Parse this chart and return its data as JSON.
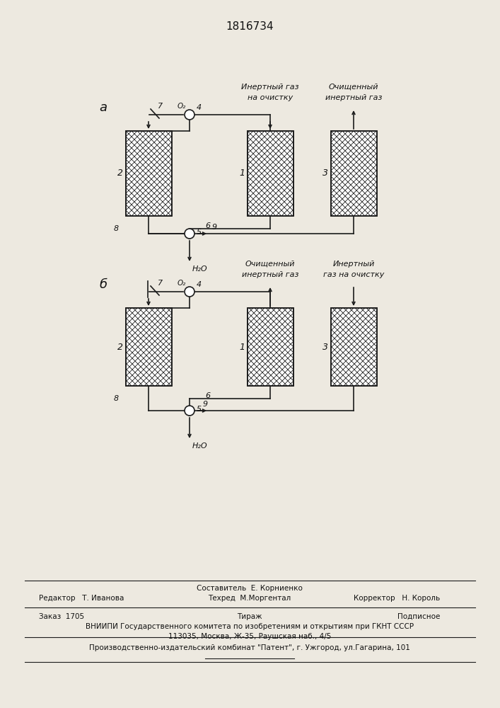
{
  "title": "1816734",
  "bg_color": "#ede9e0",
  "line_color": "#1c1c1c",
  "text_color": "#111111",
  "footer": {
    "составитель": "Составитель  Е. Корниенко",
    "техред": "Техред  М.Моргентал",
    "редактор": "Редактор   Т. Иванова",
    "корректор": "Корректор   Н. Король",
    "заказ": "Заказ  1705",
    "тираж": "Тираж",
    "подписное": "Подписное",
    "вниипи": "ВНИИПИ Государственного комитета по изобретениям и открытиям при ГКНТ СССР",
    "адрес": "113035, Москва, Ж-35, Раушская наб., 4/5",
    "патент": "Производственно-издательский комбинат \"Патент\", г. Ужгород, ул.Гагарина, 101"
  }
}
